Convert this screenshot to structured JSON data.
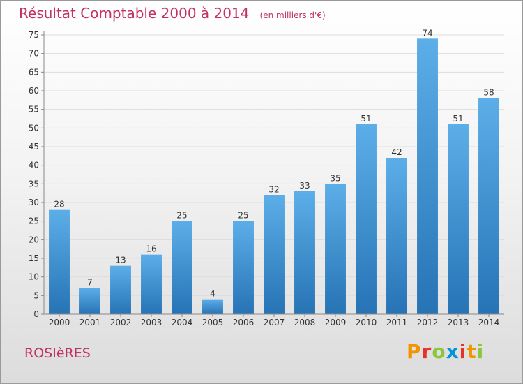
{
  "header": {
    "title": "Résultat Comptable 2000 à 2014",
    "subtitle": "(en milliers d'€)"
  },
  "footer": {
    "commune": "ROSIèRES",
    "brand": "Proxiti",
    "brand_colors": [
      "#f29400",
      "#e5332a",
      "#8cc63f",
      "#0095da",
      "#e5332a",
      "#f29400",
      "#8cc63f"
    ]
  },
  "colors": {
    "bar_top": "#5caee8",
    "bar_bottom": "#2673b5",
    "title": "#c3325f",
    "grid": "#dddddd",
    "axis_text": "#333333"
  },
  "chart_data": {
    "type": "bar",
    "categories": [
      "2000",
      "2001",
      "2002",
      "2003",
      "2004",
      "2005",
      "2006",
      "2007",
      "2008",
      "2009",
      "2010",
      "2011",
      "2012",
      "2013",
      "2014"
    ],
    "values": [
      28,
      7,
      13,
      16,
      25,
      4,
      25,
      32,
      33,
      35,
      51,
      42,
      74,
      51,
      58
    ],
    "ylim": [
      0,
      75
    ],
    "yticks": [
      0,
      5,
      10,
      15,
      20,
      25,
      30,
      35,
      40,
      45,
      50,
      55,
      60,
      65,
      70,
      75
    ],
    "grid": true,
    "data_labels": true
  }
}
